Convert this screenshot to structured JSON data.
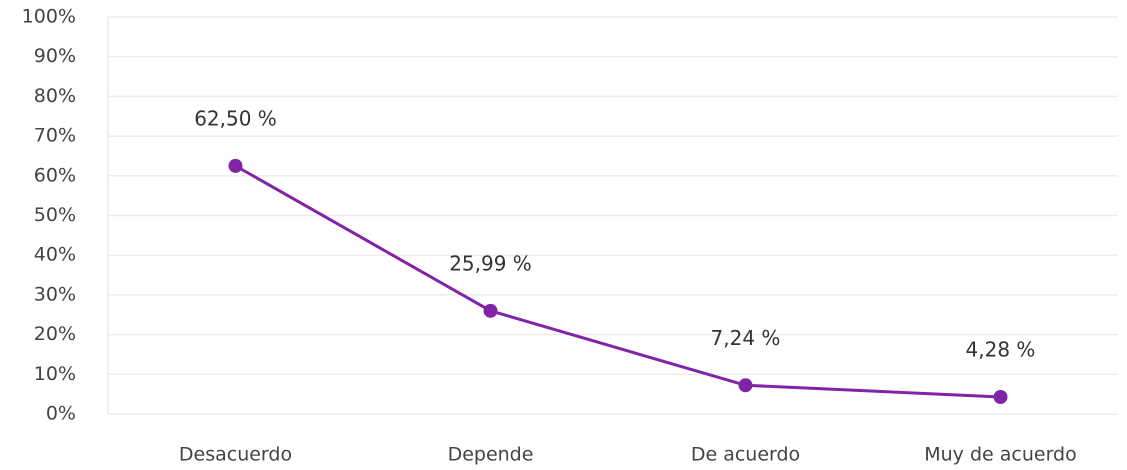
{
  "chart_data": {
    "type": "line",
    "categories": [
      "Desacuerdo",
      "Depende",
      "De acuerdo",
      "Muy de acuerdo"
    ],
    "series": [
      {
        "name": "Respuestas",
        "color": "#8224a8",
        "values": [
          62.5,
          25.99,
          7.24,
          4.28
        ],
        "value_labels": [
          "62,50 %",
          "25,99 %",
          "7,24 %",
          "4,28 %"
        ]
      }
    ],
    "ylim": [
      0,
      100
    ],
    "yticks": [
      {
        "value": 0,
        "label": "0%"
      },
      {
        "value": 10,
        "label": "10%"
      },
      {
        "value": 20,
        "label": "20%"
      },
      {
        "value": 30,
        "label": "30%"
      },
      {
        "value": 40,
        "label": "40%"
      },
      {
        "value": 50,
        "label": "50%"
      },
      {
        "value": 60,
        "label": "60%"
      },
      {
        "value": 70,
        "label": "70%"
      },
      {
        "value": 80,
        "label": "80%"
      },
      {
        "value": 90,
        "label": "90%"
      },
      {
        "value": 100,
        "label": "100%"
      }
    ],
    "grid": true
  }
}
